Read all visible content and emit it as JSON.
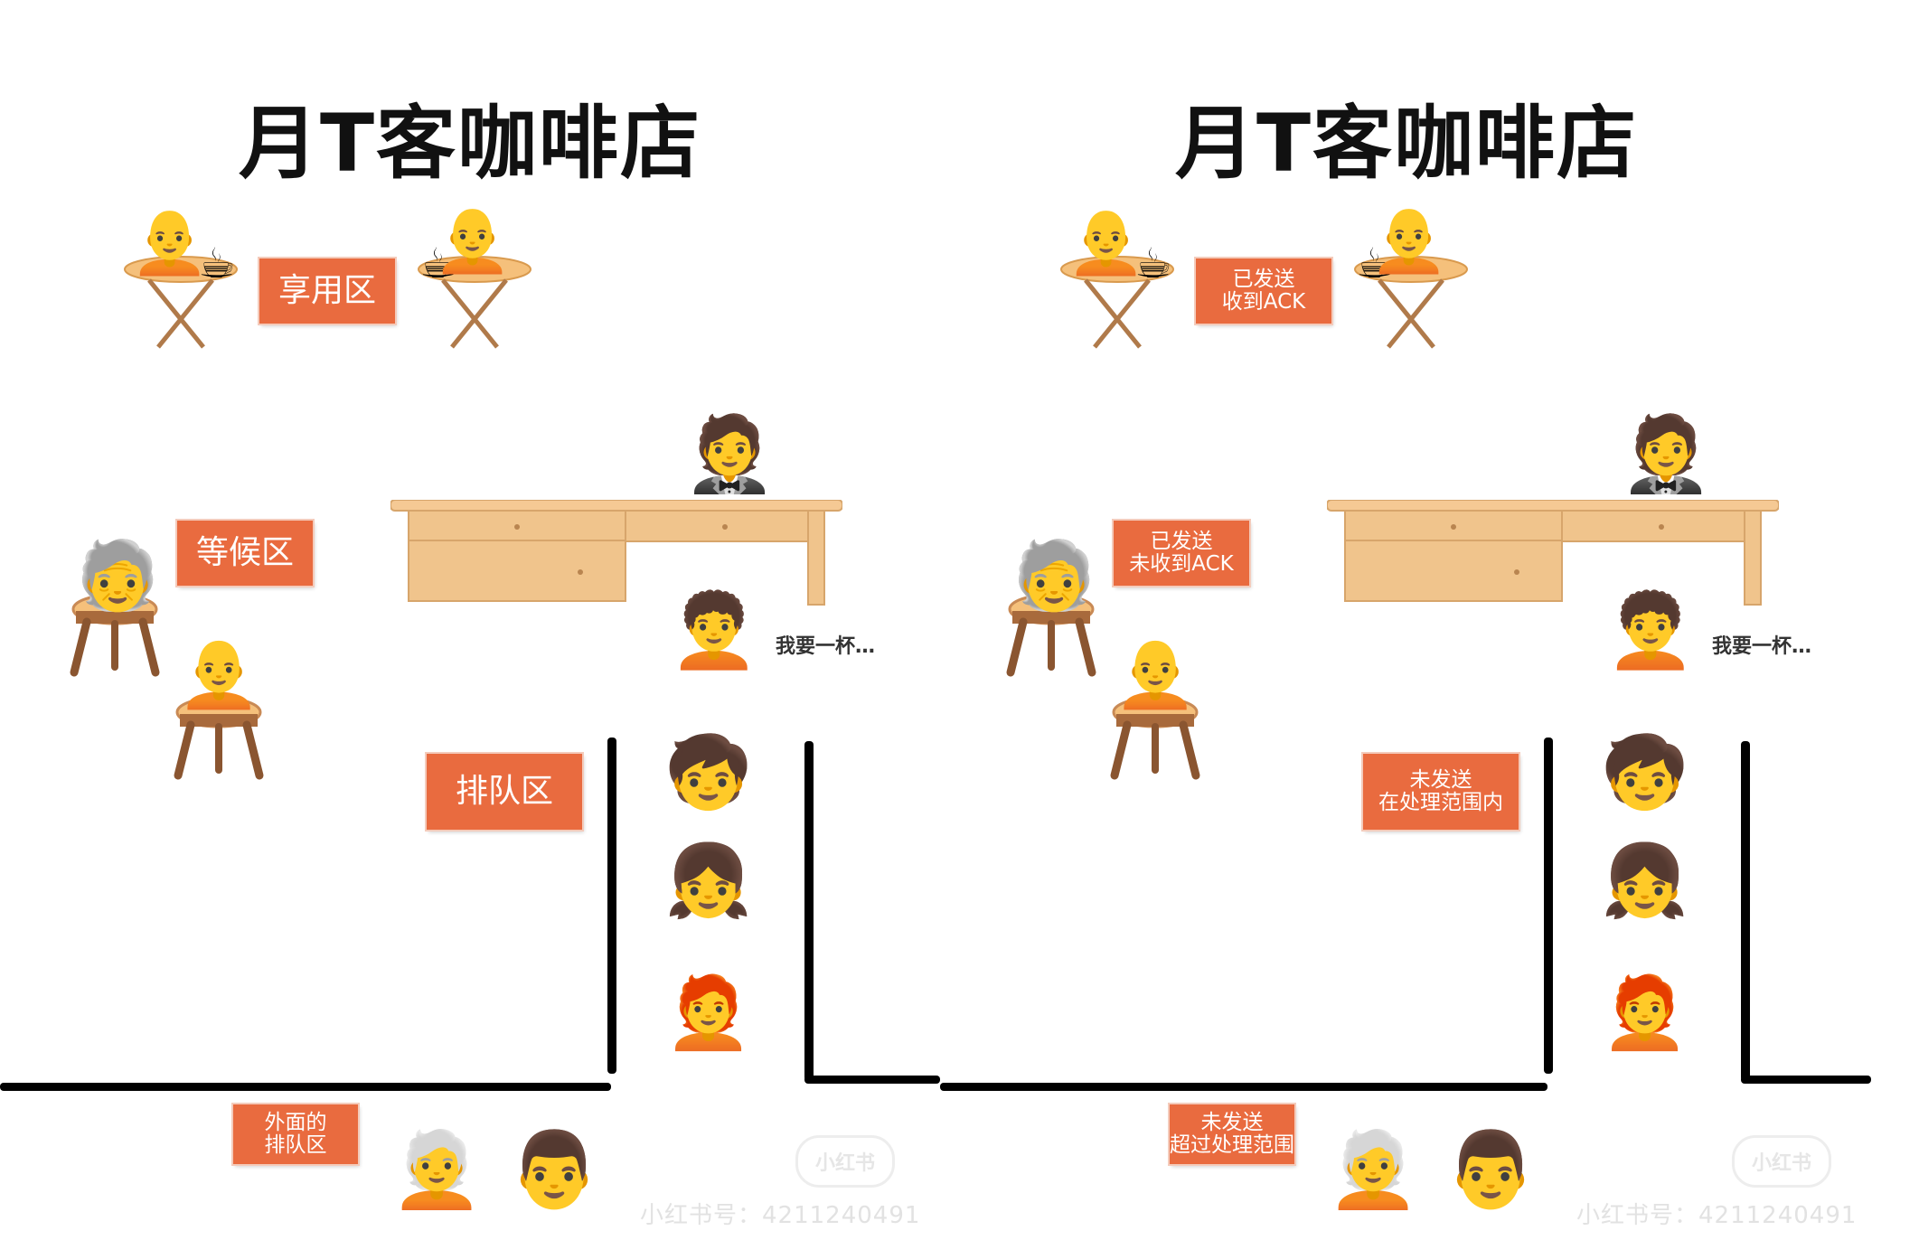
{
  "panels": [
    {
      "title": "月T客咖啡店",
      "enjoy_sign": "享用区",
      "wait_sign": "等候区",
      "queue_sign": "排队区",
      "outside_sign": "外面的\n排队区",
      "speech": "我要一杯…",
      "watermark": "小红书号：4211240491"
    },
    {
      "title": "月T客咖啡店",
      "enjoy_sign": "已发送\n收到ACK",
      "wait_sign": "已发送\n未收到ACK",
      "queue_sign": "未发送\n在处理范围内",
      "outside_sign": "未发送\n超过处理范围",
      "speech": "我要一杯…",
      "watermark": "小红书号：4211240491"
    }
  ],
  "icons": {
    "bald": "🧑‍🦲",
    "coffee": "☕",
    "barista": "🤵",
    "older": "🧓",
    "curly": "🧑‍🦱",
    "child": "🧒",
    "girl": "👧",
    "redhead": "🧑‍🦰",
    "whitehair": "🧑‍🦳",
    "man": "👨"
  },
  "colors": {
    "sign": "#e96b3f",
    "table_top": "#f5c07b",
    "wood": "#c98a55",
    "desk": "#f0c48c",
    "wall": "#000000"
  }
}
